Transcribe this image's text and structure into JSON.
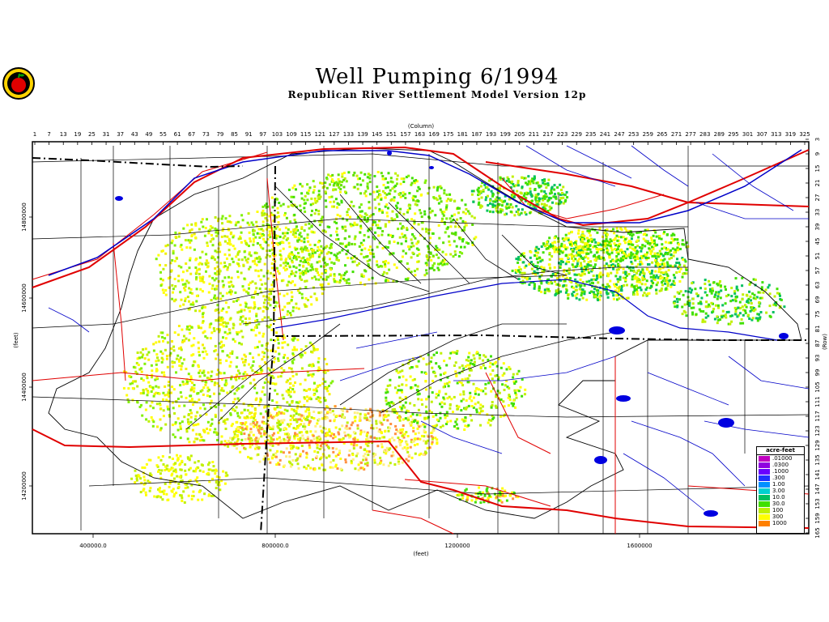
{
  "header": {
    "title": "Well Pumping  6/1994",
    "subtitle": "Republican River Settlement Model Version 12p"
  },
  "axes": {
    "column_label": "(Column)",
    "row_label": "(Row)",
    "x_label": "(feet)",
    "y_label": "(feet)",
    "column_ticks": [
      "1",
      "7",
      "13",
      "19",
      "25",
      "31",
      "37",
      "43",
      "49",
      "55",
      "61",
      "67",
      "73",
      "79",
      "85",
      "91",
      "97",
      "103",
      "109",
      "115",
      "121",
      "127",
      "133",
      "139",
      "145",
      "151",
      "157",
      "163",
      "169",
      "175",
      "181",
      "187",
      "193",
      "199",
      "205",
      "211",
      "217",
      "223",
      "229",
      "235",
      "241",
      "247",
      "253",
      "259",
      "265",
      "271",
      "277",
      "283",
      "289",
      "295",
      "301",
      "307",
      "313",
      "319",
      "325"
    ],
    "row_ticks": [
      "3",
      "9",
      "15",
      "21",
      "27",
      "33",
      "39",
      "45",
      "51",
      "57",
      "63",
      "69",
      "75",
      "81",
      "87",
      "93",
      "99",
      "105",
      "111",
      "117",
      "123",
      "129",
      "135",
      "141",
      "147",
      "153",
      "159",
      "165"
    ],
    "x_ticks": [
      "400000.0",
      "800000.0",
      "1200000",
      "1600000"
    ],
    "y_ticks": [
      "14800000",
      "14600000",
      "14400000",
      "14200000"
    ]
  },
  "legend": {
    "title": "acre-feet",
    "entries": [
      {
        "label": ".01000",
        "color": "#c000c0"
      },
      {
        "label": ".0300",
        "color": "#9000e0"
      },
      {
        "label": ".1000",
        "color": "#6a00ff"
      },
      {
        "label": ".300",
        "color": "#2030ff"
      },
      {
        "label": "1.00",
        "color": "#0090ff"
      },
      {
        "label": "3.00",
        "color": "#00d0d0"
      },
      {
        "label": "10.0",
        "color": "#00c060"
      },
      {
        "label": "30.0",
        "color": "#40e000"
      },
      {
        "label": "100",
        "color": "#c0f000"
      },
      {
        "label": "300",
        "color": "#ffff00"
      },
      {
        "label": "1000",
        "color": "#ff8000"
      }
    ]
  },
  "colors": {
    "rivers": "#0000c8",
    "roads": "#e00000",
    "boundaries": "#000000"
  },
  "icons": {
    "logo": "apple-logo-icon"
  }
}
